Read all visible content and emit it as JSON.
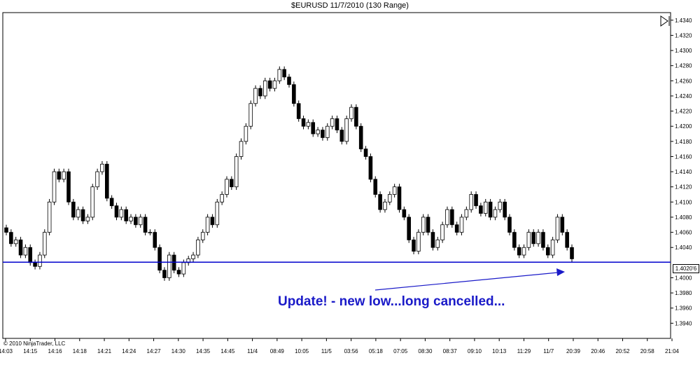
{
  "window": {
    "title": "$EURUSD  11/7/2010 (130 Range)",
    "copyright": "© 2010 NinjaTrader, LLC"
  },
  "annotation": {
    "text": "Update! - new low...long cancelled...",
    "color": "#1a1ac8"
  },
  "colors": {
    "support_line": "#0000cc",
    "up_candle": "#ffffff",
    "down_candle": "#000000",
    "axis": "#000000"
  },
  "icons": {
    "nav": "play-to-end-icon"
  },
  "chart_data": {
    "type": "candlestick",
    "title": "$EURUSD  11/7/2010 (130 Range)",
    "ylim": [
      1.392,
      1.435
    ],
    "y_ticks": [
      "1.4340",
      "1.4320",
      "1.4300",
      "1.4280",
      "1.4260",
      "1.4240",
      "1.4220",
      "1.4200",
      "1.4180",
      "1.4160",
      "1.4140",
      "1.4120",
      "1.4100",
      "1.4080",
      "1.4060",
      "1.4040",
      "1.4000",
      "1.3980",
      "1.3960",
      "1.3940"
    ],
    "x_ticks": [
      "14:03",
      "14:15",
      "14:16",
      "14:18",
      "14:21",
      "14:24",
      "14:27",
      "14:30",
      "14:35",
      "14:45",
      "11/4",
      "08:49",
      "10:05",
      "11/5",
      "03:56",
      "05:18",
      "07:05",
      "08:30",
      "08:37",
      "09:10",
      "10:13",
      "11:29",
      "11/7",
      "20:39",
      "20:46",
      "20:52",
      "20:58",
      "21:04"
    ],
    "horizontal_line": {
      "value": 1.40206,
      "label": "1.4020'6"
    },
    "close_path": [
      1.406,
      1.4045,
      1.405,
      1.403,
      1.404,
      1.402,
      1.4015,
      1.403,
      1.406,
      1.41,
      1.414,
      1.413,
      1.414,
      1.41,
      1.408,
      1.409,
      1.4075,
      1.408,
      1.412,
      1.414,
      1.415,
      1.4105,
      1.4095,
      1.408,
      1.409,
      1.4075,
      1.408,
      1.407,
      1.408,
      1.406,
      1.406,
      1.404,
      1.401,
      1.4,
      1.403,
      1.401,
      1.4005,
      1.402,
      1.4025,
      1.403,
      1.405,
      1.406,
      1.408,
      1.407,
      1.41,
      1.411,
      1.413,
      1.412,
      1.416,
      1.418,
      1.42,
      1.423,
      1.425,
      1.424,
      1.426,
      1.425,
      1.426,
      1.4275,
      1.4265,
      1.4255,
      1.423,
      1.421,
      1.42,
      1.4205,
      1.419,
      1.4195,
      1.4185,
      1.42,
      1.421,
      1.4195,
      1.418,
      1.421,
      1.4225,
      1.42,
      1.417,
      1.416,
      1.413,
      1.411,
      1.409,
      1.41,
      1.411,
      1.412,
      1.409,
      1.408,
      1.405,
      1.4035,
      1.406,
      1.408,
      1.406,
      1.404,
      1.405,
      1.407,
      1.409,
      1.407,
      1.406,
      1.408,
      1.409,
      1.411,
      1.4095,
      1.4085,
      1.41,
      1.408,
      1.409,
      1.41,
      1.408,
      1.406,
      1.404,
      1.403,
      1.404,
      1.406,
      1.4045,
      1.406,
      1.404,
      1.403,
      1.405,
      1.408,
      1.406,
      1.404,
      1.4025
    ]
  }
}
